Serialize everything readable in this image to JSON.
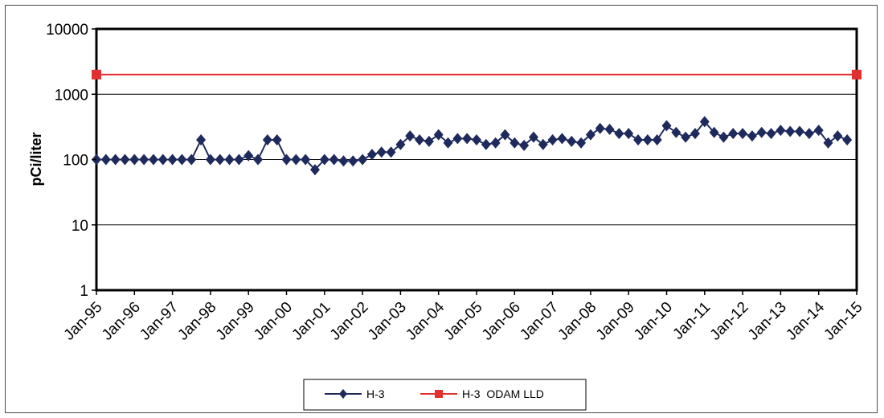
{
  "chart_data": {
    "type": "line",
    "ylabel": "pCi/liter",
    "xlabel": "",
    "y_scale": "log",
    "ylim": [
      1,
      10000
    ],
    "y_ticks": [
      "1",
      "10",
      "100",
      "1000",
      "10000"
    ],
    "x_ticks": [
      "Jan-95",
      "Jan-96",
      "Jan-97",
      "Jan-98",
      "Jan-99",
      "Jan-00",
      "Jan-01",
      "Jan-02",
      "Jan-03",
      "Jan-04",
      "Jan-05",
      "Jan-06",
      "Jan-07",
      "Jan-08",
      "Jan-09",
      "Jan-10",
      "Jan-11",
      "Jan-12",
      "Jan-13",
      "Jan-14",
      "Jan-15"
    ],
    "xlim": [
      "1995-01",
      "2015-01"
    ],
    "grid": "horizontal",
    "legend_position": "bottom",
    "series": [
      {
        "name": "H-3",
        "color": "#1f2a5c",
        "marker": "diamond",
        "points": [
          [
            "1995-01",
            100
          ],
          [
            "1995-04",
            100
          ],
          [
            "1995-07",
            100
          ],
          [
            "1995-10",
            100
          ],
          [
            "1996-01",
            100
          ],
          [
            "1996-04",
            100
          ],
          [
            "1996-07",
            100
          ],
          [
            "1996-10",
            100
          ],
          [
            "1997-01",
            100
          ],
          [
            "1997-04",
            100
          ],
          [
            "1997-07",
            100
          ],
          [
            "1997-10",
            200
          ],
          [
            "1998-01",
            100
          ],
          [
            "1998-04",
            100
          ],
          [
            "1998-07",
            100
          ],
          [
            "1998-10",
            100
          ],
          [
            "1999-01",
            115
          ],
          [
            "1999-04",
            100
          ],
          [
            "1999-07",
            200
          ],
          [
            "1999-10",
            200
          ],
          [
            "2000-01",
            100
          ],
          [
            "2000-04",
            100
          ],
          [
            "2000-07",
            100
          ],
          [
            "2000-10",
            70
          ],
          [
            "2001-01",
            100
          ],
          [
            "2001-04",
            100
          ],
          [
            "2001-07",
            95
          ],
          [
            "2001-10",
            95
          ],
          [
            "2002-01",
            100
          ],
          [
            "2002-04",
            120
          ],
          [
            "2002-07",
            130
          ],
          [
            "2002-10",
            130
          ],
          [
            "2003-01",
            170
          ],
          [
            "2003-04",
            230
          ],
          [
            "2003-07",
            200
          ],
          [
            "2003-10",
            190
          ],
          [
            "2004-01",
            240
          ],
          [
            "2004-04",
            180
          ],
          [
            "2004-07",
            210
          ],
          [
            "2004-10",
            210
          ],
          [
            "2005-01",
            200
          ],
          [
            "2005-04",
            170
          ],
          [
            "2005-07",
            180
          ],
          [
            "2005-10",
            240
          ],
          [
            "2006-01",
            180
          ],
          [
            "2006-04",
            165
          ],
          [
            "2006-07",
            220
          ],
          [
            "2006-10",
            170
          ],
          [
            "2007-01",
            200
          ],
          [
            "2007-04",
            210
          ],
          [
            "2007-07",
            190
          ],
          [
            "2007-10",
            180
          ],
          [
            "2008-01",
            240
          ],
          [
            "2008-04",
            300
          ],
          [
            "2008-07",
            290
          ],
          [
            "2008-10",
            250
          ],
          [
            "2009-01",
            250
          ],
          [
            "2009-04",
            200
          ],
          [
            "2009-07",
            200
          ],
          [
            "2009-10",
            200
          ],
          [
            "2010-01",
            330
          ],
          [
            "2010-04",
            260
          ],
          [
            "2010-07",
            220
          ],
          [
            "2010-10",
            250
          ],
          [
            "2011-01",
            380
          ],
          [
            "2011-04",
            260
          ],
          [
            "2011-07",
            220
          ],
          [
            "2011-10",
            250
          ],
          [
            "2012-01",
            250
          ],
          [
            "2012-04",
            230
          ],
          [
            "2012-07",
            260
          ],
          [
            "2012-10",
            250
          ],
          [
            "2013-01",
            280
          ],
          [
            "2013-04",
            270
          ],
          [
            "2013-07",
            270
          ],
          [
            "2013-10",
            250
          ],
          [
            "2014-01",
            280
          ],
          [
            "2014-04",
            180
          ],
          [
            "2014-07",
            230
          ],
          [
            "2014-10",
            200
          ]
        ]
      },
      {
        "name": "H-3  ODAM LLD",
        "color": "#e03030",
        "marker": "square",
        "points": [
          [
            "1995-01",
            2000
          ],
          [
            "2014-10",
            2000
          ]
        ]
      }
    ]
  }
}
